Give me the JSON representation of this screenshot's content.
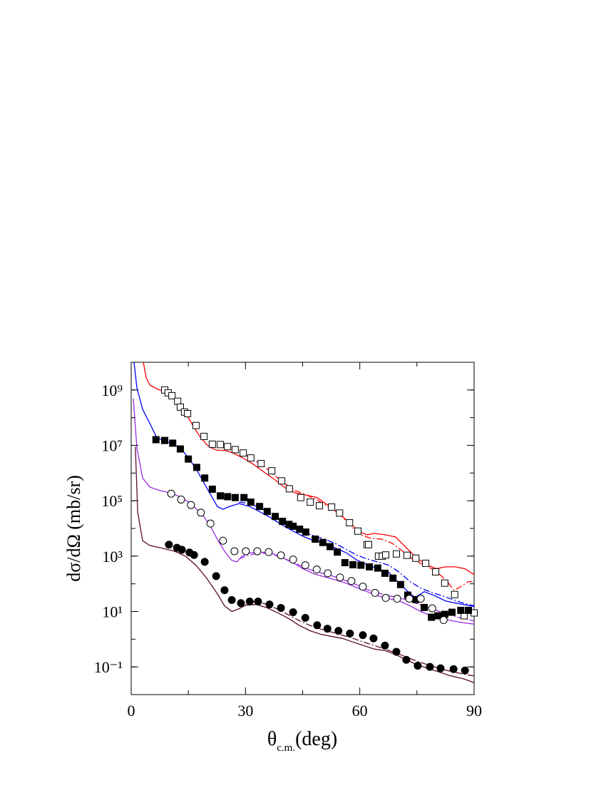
{
  "chart_data": {
    "type": "scatter",
    "ylabel": "dσ/dΩ (mb/sr)",
    "xlabel": {
      "symbol": "θ",
      "subscript": "c.m.",
      "suffix": "(deg)"
    },
    "xlim": [
      0,
      90
    ],
    "xticks": [
      0,
      30,
      60,
      90
    ],
    "ylim": [
      0.01,
      10000000000.0
    ],
    "yscale": "log",
    "yticks": [
      {
        "value": 1000000000.0,
        "label": "10⁹"
      },
      {
        "value": 10000000.0,
        "label": "10⁷"
      },
      {
        "value": 100000.0,
        "label": "10⁵"
      },
      {
        "value": 1000.0,
        "label": "10³"
      },
      {
        "value": 10,
        "label": "10¹"
      },
      {
        "value": 0.1,
        "label": "10⁻¹"
      }
    ],
    "grid": false,
    "series": [
      {
        "type": "scatter",
        "marker": "open-square",
        "color": "#000000",
        "x": [
          8.8,
          9.7,
          10.7,
          12.2,
          12.9,
          14.0,
          14.8,
          17.0,
          19.1,
          21.3,
          23.4,
          25.3,
          27.3,
          29.4,
          31.4,
          34.1,
          36.9,
          39.5,
          41.5,
          44.5,
          47.0,
          49.4,
          52.6,
          54.7,
          57.3,
          59.5,
          61.9,
          62.3,
          64.9,
          65.9,
          66.8,
          69.6,
          72.4,
          74.7,
          77.3,
          79.9,
          82.3,
          84.9,
          87.4,
          90.0
        ],
        "values": [
          1000000000.0,
          790000000.0,
          620000000.0,
          390000000.0,
          240000000.0,
          160000000.0,
          140000000.0,
          52000000.0,
          21000000.0,
          11000000.0,
          10700000.0,
          9000000.0,
          7000000.0,
          5300000.0,
          3500000.0,
          2200000.0,
          1200000.0,
          520000.0,
          270000.0,
          130000.0,
          89000.0,
          66000.0,
          59000.0,
          36000.0,
          16000.0,
          8000.0,
          2600.0,
          2600.0,
          1000.0,
          1000.0,
          1100.0,
          1200.0,
          1070.0,
          840,
          550,
          270,
          106,
          41,
          7,
          8.9
        ]
      },
      {
        "type": "scatter",
        "marker": "filled-square",
        "color": "#000000",
        "x": [
          6.5,
          8.8,
          10.9,
          12.9,
          15.0,
          17.2,
          19.3,
          21.3,
          23.4,
          25.3,
          27.3,
          29.6,
          31.4,
          33.7,
          35.7,
          37.8,
          39.7,
          41.4,
          42.5,
          44.2,
          45.8,
          48.3,
          50.3,
          52.2,
          54.1,
          56.1,
          58.2,
          60.3,
          62.5,
          64.7,
          66.6,
          68.7,
          70.7,
          72.6,
          74.7,
          76.9,
          78.8,
          80.5,
          82.3,
          84.2,
          86.5,
          88.5
        ],
        "values": [
          16000000.0,
          15000000.0,
          12000000.0,
          7400000.0,
          3200000.0,
          1600000.0,
          660000.0,
          260000.0,
          150000.0,
          140000.0,
          130000.0,
          130000.0,
          89000.0,
          62000.0,
          41000.0,
          27000.0,
          18000.0,
          14000.0,
          12000.0,
          9400.0,
          7400.0,
          4100.0,
          3100.0,
          2200.0,
          1400.0,
          580,
          490,
          470,
          410,
          370,
          240,
          160,
          94,
          39,
          27,
          14,
          6.2,
          7,
          7.9,
          9.4,
          11,
          11
        ]
      },
      {
        "type": "scatter",
        "marker": "open-circle",
        "color": "#000000",
        "x": [
          10.5,
          13.1,
          15.7,
          18.3,
          20.8,
          24.1,
          27.1,
          30.1,
          33.1,
          36.1,
          39.3,
          42.5,
          45.7,
          48.7,
          51.6,
          54.8,
          57.8,
          60.8,
          64.0,
          66.8,
          69.8,
          73.0,
          76.0,
          79.0,
          82.0
        ],
        "values": [
          180000.0,
          110000.0,
          70000.0,
          37000.0,
          15000.0,
          3600.0,
          1500.0,
          1500.0,
          1500.0,
          1400.0,
          1070.0,
          750,
          470,
          330,
          240,
          170,
          126,
          79,
          47,
          31,
          29,
          29,
          29,
          13,
          4.9
        ]
      },
      {
        "type": "scatter",
        "marker": "filled-circle",
        "color": "#000000",
        "x": [
          9.9,
          12.0,
          13.3,
          15.3,
          16.5,
          19.3,
          22.3,
          24.5,
          26.4,
          28.8,
          31.1,
          33.3,
          36.3,
          39.3,
          42.5,
          45.7,
          48.8,
          51.5,
          54.4,
          57.4,
          60.8,
          63.6,
          66.6,
          69.6,
          72.2,
          75.2,
          78.4,
          81.2,
          84.6,
          87.6
        ],
        "values": [
          2600.0,
          2000.0,
          1700.0,
          1350.0,
          1100.0,
          620,
          190,
          59,
          26,
          20,
          23,
          23,
          18,
          13.5,
          9.4,
          5.9,
          3.2,
          2.4,
          2.0,
          1.6,
          1.4,
          1.07,
          0.59,
          0.35,
          0.18,
          0.11,
          0.1,
          0.089,
          0.083,
          0.074
        ]
      },
      {
        "type": "line",
        "style": "solid",
        "color": "#ff0000",
        "x": [
          3.2,
          3.9,
          4.9,
          6.7,
          8.6,
          10.5,
          12.4,
          14.2,
          16.1,
          18.0,
          19.8,
          21.1,
          22.6,
          24.5,
          26.4,
          29.2,
          32.0,
          34.8,
          37.6,
          40.4,
          43.2,
          46.0,
          48.8,
          51.6,
          54.5,
          57.3,
          60.1,
          61.9,
          63.8,
          66.6,
          69.4,
          72.2,
          75.0,
          77.8,
          80.1,
          82.5,
          85.0,
          87.6,
          90.0
        ],
        "values": [
          10000000000.0,
          2900000000.0,
          1500000000.0,
          1100000000.0,
          890000000.0,
          590000000.0,
          350000000.0,
          150000000.0,
          55000000.0,
          21000000.0,
          10700000.0,
          7900000.0,
          6600000.0,
          6600000.0,
          5500000.0,
          3600000.0,
          2100000.0,
          1100000.0,
          590000.0,
          290000.0,
          190000.0,
          160000.0,
          130000.0,
          70000.0,
          35000.0,
          16000.0,
          7400.0,
          5900.0,
          6600.0,
          5900.0,
          4900.0,
          2000.0,
          840,
          470,
          350,
          410,
          410,
          350,
          215
        ]
      },
      {
        "type": "line",
        "style": "dash-dot",
        "color": "#ff0000",
        "x": [
          30.1,
          34.8,
          37.6,
          40.4,
          43.2,
          46.0,
          48.8,
          51.6,
          54.5,
          57.3,
          60.1,
          62.9,
          65.7,
          68.5,
          71.3,
          74.1,
          76.9,
          79.7,
          82.5,
          84.8,
          86.8,
          88.5,
          90.0
        ],
        "values": [
          4400000.0,
          1800000.0,
          830000.0,
          410000.0,
          230000.0,
          160000.0,
          107000.0,
          62000.0,
          35000.0,
          13500.0,
          5900.0,
          4400.0,
          4100.0,
          2900.0,
          1500.0,
          740,
          470,
          310,
          140,
          59,
          84,
          120,
          120
        ]
      },
      {
        "type": "line",
        "style": "solid",
        "color": "#0000ff",
        "x": [
          0.75,
          1.5,
          3.0,
          4.9,
          6.7,
          9.0,
          11.4,
          13.3,
          15.2,
          17.2,
          18.9,
          20.8,
          22.6,
          24.1,
          25.8,
          28.3,
          31.1,
          33.9,
          36.7,
          39.5,
          42.3,
          45.1,
          47.9,
          50.7,
          53.5,
          56.3,
          59.1,
          61.9,
          64.7,
          67.6,
          69.4,
          71.3,
          73.2,
          74.5,
          76.9,
          79.7,
          82.5,
          85.3,
          88.1,
          90.0
        ],
        "values": [
          10000000000.0,
          1200000000.0,
          200000000.0,
          62000000.0,
          19000000.0,
          14000000.0,
          10700000.0,
          7000000.0,
          3300000.0,
          1300000.0,
          490000.0,
          170000.0,
          62000.0,
          49000.0,
          62000.0,
          79000.0,
          62000.0,
          39000.0,
          24000.0,
          13500.0,
          8300.0,
          5200.0,
          3600.0,
          2900.0,
          2000.0,
          1350.0,
          740,
          490,
          350,
          260,
          140,
          79,
          44,
          32,
          52,
          37,
          24,
          20,
          17,
          15
        ]
      },
      {
        "type": "line",
        "style": "dash-dot",
        "color": "#0000ff",
        "x": [
          28.3,
          31.1,
          33.9,
          36.7,
          39.5,
          42.3,
          45.1,
          47.9,
          50.7,
          53.5,
          56.3,
          59.1,
          61.9,
          64.7,
          67.6,
          70.4,
          73.2,
          76.0,
          78.8,
          81.6,
          84.4,
          87.2,
          90.0
        ],
        "values": [
          89000.0,
          79000.0,
          55000.0,
          35000.0,
          19000.0,
          12000.0,
          7400.0,
          5500.0,
          4100.0,
          2900.0,
          1800.0,
          1100.0,
          790,
          620,
          470,
          260,
          120,
          70,
          49,
          37,
          27,
          20,
          16
        ]
      },
      {
        "type": "line",
        "style": "solid",
        "color": "#9a2be2",
        "x": [
          0.56,
          1.5,
          3.0,
          4.9,
          7.7,
          10.5,
          13.3,
          16.1,
          18.9,
          20.8,
          22.6,
          24.5,
          26.4,
          27.7,
          29.2,
          31.1,
          33.9,
          36.7,
          39.5,
          42.3,
          45.1,
          47.9,
          50.7,
          53.5,
          56.3,
          59.1,
          61.9,
          64.7,
          67.6,
          70.4,
          73.2,
          76.0,
          78.8,
          81.6,
          84.4,
          87.2,
          90.0
        ],
        "values": [
          490000000.0,
          7900000.0,
          660000.0,
          310000.0,
          230000.0,
          190000.0,
          130000.0,
          70000.0,
          29000.0,
          12000.0,
          4100.0,
          1500.0,
          700,
          620,
          1000.0,
          1300.0,
          1400.0,
          1300.0,
          890,
          590,
          350,
          230,
          180,
          140,
          106,
          74,
          52,
          37,
          29,
          24,
          16,
          10,
          7,
          5.5,
          4.6,
          3.9,
          3.5
        ]
      },
      {
        "type": "line",
        "style": "dash-dot",
        "color": "#9a2be2",
        "x": [
          28.3,
          31.1,
          33.9,
          36.7,
          39.5,
          42.3,
          45.1,
          47.9,
          50.7,
          53.5,
          56.3,
          59.1,
          61.9,
          64.7,
          67.6,
          70.4,
          73.2,
          76.0,
          78.8,
          81.6,
          84.4,
          87.2,
          90.0
        ],
        "values": [
          790,
          1100.0,
          1300.0,
          1200.0,
          890,
          620,
          410,
          290,
          230,
          180,
          130,
          94,
          62,
          47,
          37,
          31,
          24,
          17,
          12.6,
          9.4,
          7,
          5.5,
          4.6
        ]
      },
      {
        "type": "line",
        "style": "solid",
        "color": "#5a0b30",
        "x": [
          1.1,
          1.7,
          3.0,
          4.9,
          7.7,
          11.4,
          14.2,
          17.0,
          19.8,
          22.6,
          24.5,
          26.4,
          28.3,
          30.1,
          32.9,
          35.7,
          38.5,
          41.4,
          44.2,
          47.0,
          49.8,
          52.6,
          55.4,
          58.2,
          61.0,
          63.8,
          66.6,
          69.4,
          72.2,
          75.0,
          77.8,
          80.7,
          83.5,
          87.2,
          90.0
        ],
        "values": [
          8900000.0,
          39000.0,
          3600.0,
          2400.0,
          2000.0,
          1500.0,
          1000.0,
          470,
          160,
          44,
          16,
          10,
          12.6,
          17,
          18,
          13.5,
          8.9,
          5.5,
          3.1,
          2.0,
          1.5,
          1.26,
          1.07,
          0.79,
          0.59,
          0.44,
          0.39,
          0.28,
          0.18,
          0.12,
          0.089,
          0.066,
          0.049,
          0.037,
          0.027
        ]
      },
      {
        "type": "line",
        "style": "dash-dot",
        "color": "#5a0b30",
        "x": [
          28.3,
          30.1,
          32.9,
          35.7,
          38.5,
          41.4,
          44.2,
          47.0,
          49.8,
          52.6,
          55.4,
          58.2,
          61.0,
          63.8,
          66.6,
          69.4,
          72.2,
          75.0,
          77.8,
          80.7,
          83.5,
          87.2,
          90.0
        ],
        "values": [
          16,
          20,
          23,
          18,
          12,
          7.4,
          4.6,
          3.1,
          2.3,
          1.8,
          1.4,
          1.07,
          0.79,
          0.59,
          0.44,
          0.32,
          0.23,
          0.16,
          0.12,
          0.089,
          0.071,
          0.055,
          0.047
        ]
      }
    ]
  }
}
